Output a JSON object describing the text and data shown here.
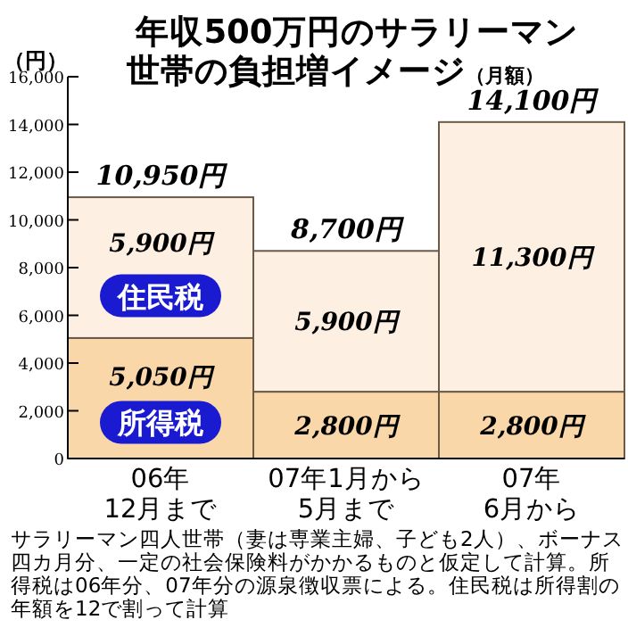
{
  "chart_data": {
    "type": "bar",
    "stacked": true,
    "title": "年収500万円のサラリーマン世帯の負担増イメージ",
    "subtitle": "（月額）",
    "ylabel": "（円）",
    "categories": [
      "06年\n12月まで",
      "07年1月から\n5月まで",
      "07年\n6月から"
    ],
    "series": [
      {
        "name": "所得税",
        "color": "#fad7a8",
        "values": [
          5050,
          2800,
          2800
        ],
        "value_labels": [
          "5,050円",
          "2,800円",
          "2,800円"
        ]
      },
      {
        "name": "住民税",
        "color": "#fdefe2",
        "values": [
          5900,
          5900,
          11300
        ],
        "value_labels": [
          "5,900円",
          "5,900円",
          "11,300円"
        ]
      }
    ],
    "totals": [
      "10,950円",
      "8,700円",
      "14,100円"
    ],
    "ylim": [
      0,
      16000
    ],
    "yticks": [
      {
        "value": 0,
        "label": "0"
      },
      {
        "value": 2000,
        "label": "2,000"
      },
      {
        "value": 4000,
        "label": "4,000"
      },
      {
        "value": 6000,
        "label": "6,000"
      },
      {
        "value": 8000,
        "label": "8,000"
      },
      {
        "value": 10000,
        "label": "10,000"
      },
      {
        "value": 12000,
        "label": "12,000"
      },
      {
        "value": 14000,
        "label": "14,000"
      },
      {
        "value": 16000,
        "label": "16,000"
      }
    ],
    "legend": "left",
    "grid": false,
    "annotations": [
      "サラリーマン四人世帯（妻は専業主婦、子ども2人）、ボーナス四カ月分、一定の社会保険料がかかるものと仮定して計算。所得税は06年分、07年分の源泉徴収票による。住民税は所得割の年額を12で割って計算"
    ]
  }
}
